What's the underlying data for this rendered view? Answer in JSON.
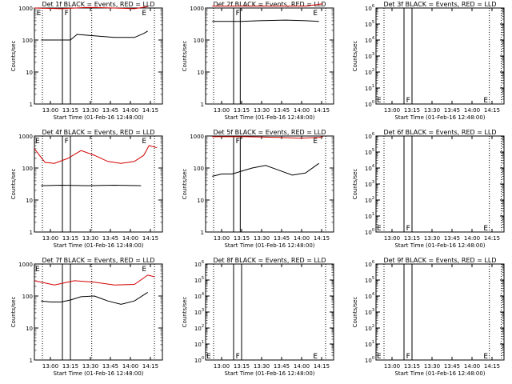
{
  "colors": {
    "events": "#000000",
    "lld": "#d40000",
    "axes": "#000000"
  },
  "shared": {
    "xlabel": "Start Time (01-Feb-16 12:48:00)",
    "xticks": [
      "13:00",
      "13:15",
      "13:30",
      "13:45",
      "14:00",
      "14:15"
    ],
    "xrange_minutes_after_1248": [
      0,
      96
    ],
    "ylabel": "Counts/sec"
  },
  "chart_data": [
    {
      "type": "line",
      "title": "Det 1f BLACK = Events, RED = LLD",
      "scale": "log",
      "ylim": [
        1,
        1000
      ],
      "yticks": [
        "1",
        "10",
        "100",
        "1000"
      ],
      "dotted_lines": [
        6,
        43,
        90
      ],
      "solid_lines": [
        21,
        27
      ],
      "markers": [
        {
          "text": "E",
          "x": 1,
          "y": 1000
        },
        {
          "text": "F",
          "x": 22,
          "y": 1000
        },
        {
          "text": "E",
          "x": 80,
          "y": 1000
        }
      ],
      "series": [
        {
          "color": "lld",
          "points": [
            [
              0,
              1000
            ],
            [
              20,
              950
            ],
            [
              40,
              1050
            ],
            [
              60,
              1000
            ],
            [
              75,
              950
            ],
            [
              85,
              1100
            ]
          ]
        },
        {
          "color": "events",
          "points": [
            [
              5,
              100
            ],
            [
              18,
              100
            ],
            [
              21,
              100
            ],
            [
              27,
              100
            ],
            [
              32,
              150
            ],
            [
              45,
              135
            ],
            [
              60,
              120
            ],
            [
              75,
              120
            ],
            [
              82,
              160
            ],
            [
              85,
              190
            ]
          ]
        }
      ]
    },
    {
      "type": "line",
      "title": "Det 2f BLACK = Events, RED = LLD",
      "scale": "log",
      "ylim": [
        1,
        1000
      ],
      "yticks": [
        "1",
        "10",
        "100",
        "1000"
      ],
      "dotted_lines": [
        6,
        90
      ],
      "solid_lines": [
        21,
        26
      ],
      "markers": [
        {
          "text": "F",
          "x": 22,
          "y": 1000
        },
        {
          "text": "E",
          "x": 80,
          "y": 1000
        }
      ],
      "series": [
        {
          "color": "lld",
          "points": [
            [
              5,
              1150
            ],
            [
              30,
              1150
            ],
            [
              60,
              1150
            ],
            [
              75,
              1150
            ],
            [
              88,
              1350
            ]
          ]
        },
        {
          "color": "events",
          "points": [
            [
              5,
              380
            ],
            [
              21,
              380
            ],
            [
              27,
              380
            ],
            [
              40,
              400
            ],
            [
              60,
              420
            ],
            [
              75,
              400
            ],
            [
              85,
              380
            ]
          ]
        }
      ]
    },
    {
      "type": "line",
      "title": "Det 3f BLACK = Events, RED = LLD",
      "scale": "log",
      "ylim": [
        1,
        1000000
      ],
      "yticks": [
        "10^0",
        "10^1",
        "10^2",
        "10^3",
        "10^4",
        "10^5",
        "10^6"
      ],
      "dotted_lines": [
        6,
        85,
        94
      ],
      "solid_lines": [
        21,
        27
      ],
      "markers": [
        {
          "text": "E",
          "x": 0,
          "y": 1
        },
        {
          "text": "F",
          "x": 22,
          "y": 1
        },
        {
          "text": "E",
          "x": 80,
          "y": 1
        }
      ],
      "series": []
    },
    {
      "type": "line",
      "title": "Det 4f BLACK = Events, RED = LLD",
      "scale": "log",
      "ylim": [
        1,
        1000
      ],
      "yticks": [
        "1",
        "10",
        "100",
        "1000"
      ],
      "dotted_lines": [
        6,
        43,
        90
      ],
      "solid_lines": [
        21,
        27
      ],
      "markers": [
        {
          "text": "E",
          "x": 0,
          "y": 1000
        },
        {
          "text": "F",
          "x": 22,
          "y": 1000
        },
        {
          "text": "E",
          "x": 80,
          "y": 1000
        }
      ],
      "series": [
        {
          "color": "lld",
          "points": [
            [
              0,
              400
            ],
            [
              8,
              150
            ],
            [
              15,
              140
            ],
            [
              25,
              200
            ],
            [
              35,
              350
            ],
            [
              45,
              250
            ],
            [
              55,
              160
            ],
            [
              65,
              140
            ],
            [
              75,
              160
            ],
            [
              82,
              250
            ],
            [
              86,
              500
            ],
            [
              92,
              430
            ]
          ]
        },
        {
          "color": "events",
          "points": [
            [
              5,
              28
            ],
            [
              20,
              29
            ],
            [
              40,
              28
            ],
            [
              60,
              29
            ],
            [
              80,
              28
            ]
          ]
        }
      ]
    },
    {
      "type": "line",
      "title": "Det 5f BLACK = Events, RED = LLD",
      "scale": "log",
      "ylim": [
        1,
        1000
      ],
      "yticks": [
        "1",
        "10",
        "100",
        "1000"
      ],
      "dotted_lines": [
        6,
        90
      ],
      "solid_lines": [
        21,
        26
      ],
      "markers": [
        {
          "text": "F",
          "x": 22,
          "y": 1000
        },
        {
          "text": "E",
          "x": 80,
          "y": 1000
        }
      ],
      "series": [
        {
          "color": "lld",
          "points": [
            [
              5,
              950
            ],
            [
              30,
              950
            ],
            [
              55,
              900
            ],
            [
              70,
              850
            ],
            [
              85,
              900
            ],
            [
              88,
              950
            ]
          ]
        },
        {
          "color": "events",
          "points": [
            [
              5,
              55
            ],
            [
              12,
              65
            ],
            [
              20,
              65
            ],
            [
              27,
              80
            ],
            [
              35,
              100
            ],
            [
              45,
              120
            ],
            [
              55,
              85
            ],
            [
              65,
              60
            ],
            [
              75,
              70
            ],
            [
              85,
              140
            ]
          ]
        }
      ]
    },
    {
      "type": "line",
      "title": "Det 6f BLACK = Events, RED = LLD",
      "scale": "log",
      "ylim": [
        1,
        1000000
      ],
      "yticks": [
        "10^0",
        "10^1",
        "10^2",
        "10^3",
        "10^4",
        "10^5",
        "10^6"
      ],
      "dotted_lines": [
        6,
        85,
        94
      ],
      "solid_lines": [
        21,
        27
      ],
      "markers": [
        {
          "text": "E",
          "x": 0,
          "y": 1
        },
        {
          "text": "F",
          "x": 22,
          "y": 1
        },
        {
          "text": "E",
          "x": 80,
          "y": 1
        }
      ],
      "series": []
    },
    {
      "type": "line",
      "title": "Det 7f BLACK = Events, RED = LLD",
      "scale": "log",
      "ylim": [
        1,
        1000
      ],
      "yticks": [
        "1",
        "10",
        "100",
        "1000"
      ],
      "dotted_lines": [
        6,
        43,
        90
      ],
      "solid_lines": [
        21,
        27
      ],
      "markers": [
        {
          "text": "E",
          "x": 0,
          "y": 1000
        },
        {
          "text": "E",
          "x": 80,
          "y": 1000
        }
      ],
      "series": [
        {
          "color": "lld",
          "points": [
            [
              0,
              300
            ],
            [
              15,
              220
            ],
            [
              30,
              300
            ],
            [
              45,
              270
            ],
            [
              60,
              220
            ],
            [
              75,
              230
            ],
            [
              85,
              450
            ],
            [
              90,
              400
            ]
          ]
        },
        {
          "color": "events",
          "points": [
            [
              5,
              70
            ],
            [
              12,
              65
            ],
            [
              20,
              65
            ],
            [
              27,
              75
            ],
            [
              35,
              95
            ],
            [
              45,
              100
            ],
            [
              55,
              70
            ],
            [
              65,
              55
            ],
            [
              75,
              70
            ],
            [
              85,
              130
            ]
          ]
        }
      ]
    },
    {
      "type": "line",
      "title": "Det 8f BLACK = Events, RED = LLD",
      "scale": "log",
      "ylim": [
        1,
        1000000
      ],
      "yticks": [
        "10^0",
        "10^1",
        "10^2",
        "10^3",
        "10^4",
        "10^5",
        "10^6"
      ],
      "dotted_lines": [
        6,
        90
      ],
      "solid_lines": [
        21,
        27
      ],
      "markers": [
        {
          "text": "E",
          "x": 0,
          "y": 1
        },
        {
          "text": "F",
          "x": 22,
          "y": 1
        },
        {
          "text": "E",
          "x": 80,
          "y": 1
        }
      ],
      "series": []
    },
    {
      "type": "line",
      "title": "Det 9f BLACK = Events, RED = LLD",
      "scale": "log",
      "ylim": [
        1,
        1000000
      ],
      "yticks": [
        "10^0",
        "10^1",
        "10^2",
        "10^3",
        "10^4",
        "10^5",
        "10^6"
      ],
      "dotted_lines": [
        6,
        85,
        94
      ],
      "solid_lines": [
        21,
        27
      ],
      "markers": [
        {
          "text": "E",
          "x": 0,
          "y": 1
        },
        {
          "text": "F",
          "x": 22,
          "y": 1
        },
        {
          "text": "E",
          "x": 80,
          "y": 1
        }
      ],
      "series": []
    }
  ]
}
